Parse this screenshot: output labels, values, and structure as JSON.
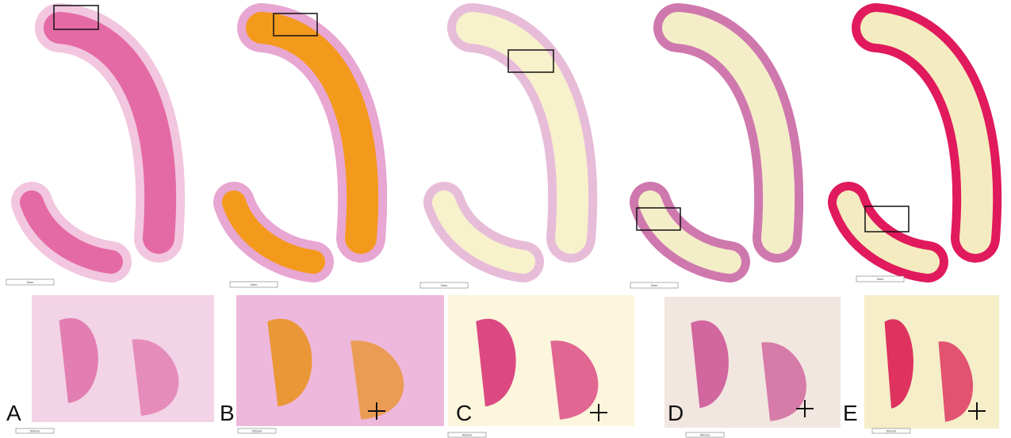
{
  "panels": [
    {
      "label": "A",
      "scale_top": "3mm",
      "scale_bottom": "500um"
    },
    {
      "label": "B",
      "scale_top": "3mm",
      "scale_bottom": "500um"
    },
    {
      "label": "C",
      "scale_top": "3mm",
      "scale_bottom": "500um"
    },
    {
      "label": "D",
      "scale_top": "3mm",
      "scale_bottom": "500um"
    },
    {
      "label": "E",
      "scale_top": "3mm",
      "scale_bottom": "500um"
    }
  ]
}
